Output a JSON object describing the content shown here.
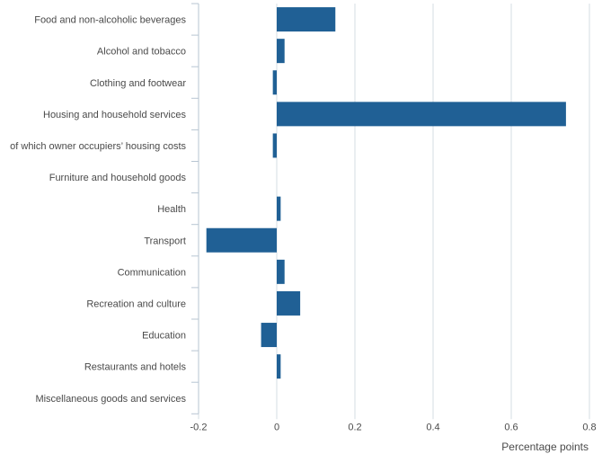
{
  "chart_data": {
    "type": "bar",
    "orientation": "horizontal",
    "categories": [
      "Food and non-alcoholic beverages",
      "Alcohol and tobacco",
      "Clothing and footwear",
      "Housing and household services",
      "of which owner occupiers’ housing costs",
      "Furniture and household goods",
      "Health",
      "Transport",
      "Communication",
      "Recreation and culture",
      "Education",
      "Restaurants and hotels",
      "Miscellaneous goods and services"
    ],
    "values": [
      0.15,
      0.02,
      -0.01,
      0.74,
      -0.01,
      0.0,
      0.01,
      -0.18,
      0.02,
      0.06,
      -0.04,
      0.01,
      0.0
    ],
    "xlabel": "Percentage points",
    "ylabel": "",
    "title": "",
    "xlim": [
      -0.2,
      0.8
    ],
    "xticks": [
      -0.2,
      0,
      0.2,
      0.4,
      0.6,
      0.8
    ],
    "xtick_labels": [
      "-0.2",
      "0",
      "0.2",
      "0.4",
      "0.6",
      "0.8"
    ],
    "grid": "vertical",
    "bar_color": "#206095",
    "grid_color": "#d6dde3"
  }
}
